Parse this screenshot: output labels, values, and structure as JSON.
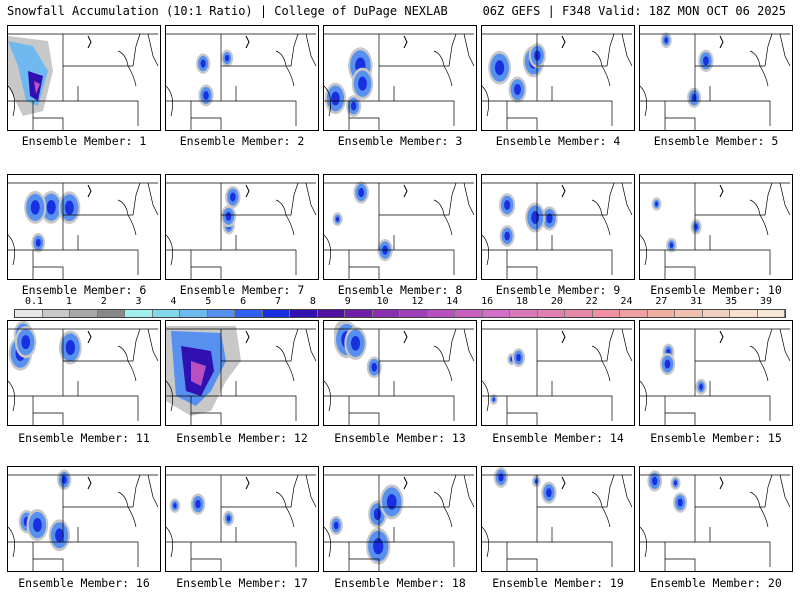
{
  "header": {
    "left_title": "Snowfall Accumulation (10:1 Ratio) | College of DuPage NEXLAB",
    "right_title": "06Z GEFS | F348 Valid: 18Z MON OCT 06 2025"
  },
  "colorbar": {
    "labels": [
      "0.1",
      "1",
      "2",
      "3",
      "4",
      "5",
      "6",
      "7",
      "8",
      "9",
      "10",
      "12",
      "14",
      "16",
      "18",
      "20",
      "22",
      "24",
      "27",
      "31",
      "35",
      "39"
    ],
    "colors": [
      "#e8e8e8",
      "#c8c8c8",
      "#a8a8a8",
      "#888888",
      "#a0f0f0",
      "#80d8e8",
      "#70b8f0",
      "#5890f0",
      "#3060f0",
      "#1830e0",
      "#3010b0",
      "#5010a0",
      "#7020a8",
      "#8830b0",
      "#a040b8",
      "#b850c0",
      "#c860c0",
      "#d070c8",
      "#d878b8",
      "#e080b0",
      "#e888a8",
      "#f090a0",
      "#f0a0a0",
      "#f0b0a0",
      "#f0c0b0",
      "#f0d0c0",
      "#f8e0d0",
      "#f8e8d8"
    ]
  },
  "panels": [
    {
      "label": "Ensemble Member: 1",
      "intensity": "heavy-west"
    },
    {
      "label": "Ensemble Member: 2",
      "intensity": "light"
    },
    {
      "label": "Ensemble Member: 3",
      "intensity": "moderate"
    },
    {
      "label": "Ensemble Member: 4",
      "intensity": "moderate"
    },
    {
      "label": "Ensemble Member: 5",
      "intensity": "light"
    },
    {
      "label": "Ensemble Member: 6",
      "intensity": "moderate"
    },
    {
      "label": "Ensemble Member: 7",
      "intensity": "light"
    },
    {
      "label": "Ensemble Member: 8",
      "intensity": "light"
    },
    {
      "label": "Ensemble Member: 9",
      "intensity": "moderate"
    },
    {
      "label": "Ensemble Member: 10",
      "intensity": "light"
    },
    {
      "label": "Ensemble Member: 11",
      "intensity": "moderate"
    },
    {
      "label": "Ensemble Member: 12",
      "intensity": "heavy"
    },
    {
      "label": "Ensemble Member: 13",
      "intensity": "moderate"
    },
    {
      "label": "Ensemble Member: 14",
      "intensity": "light"
    },
    {
      "label": "Ensemble Member: 15",
      "intensity": "light"
    },
    {
      "label": "Ensemble Member: 16",
      "intensity": "moderate"
    },
    {
      "label": "Ensemble Member: 17",
      "intensity": "light"
    },
    {
      "label": "Ensemble Member: 18",
      "intensity": "moderate"
    },
    {
      "label": "Ensemble Member: 19",
      "intensity": "light"
    },
    {
      "label": "Ensemble Member: 20",
      "intensity": "light"
    }
  ]
}
